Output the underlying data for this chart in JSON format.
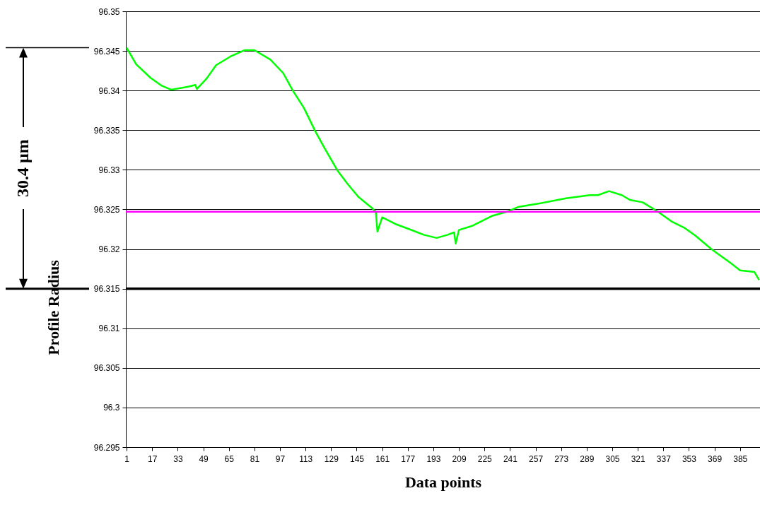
{
  "chart_data": {
    "type": "line",
    "xlabel": "Data points",
    "ylabel": "Profile Radius",
    "x": [
      1,
      7,
      16,
      23,
      29,
      40,
      44,
      45,
      51,
      57,
      66,
      75,
      81,
      91,
      99,
      105,
      112,
      119,
      125,
      133,
      139,
      146,
      155,
      157,
      158,
      161,
      170,
      178,
      187,
      195,
      202,
      206,
      207,
      209,
      217,
      230,
      239,
      246,
      258,
      276,
      291,
      296,
      303,
      311,
      316,
      324,
      333,
      342,
      350,
      357,
      367,
      380,
      385,
      394,
      397
    ],
    "values": [
      96.3454,
      96.3433,
      96.3416,
      96.3406,
      96.3401,
      96.3405,
      96.3407,
      96.3402,
      96.3415,
      96.3432,
      96.3443,
      96.3451,
      96.3451,
      96.3439,
      96.3422,
      96.34,
      96.3378,
      96.3349,
      96.3327,
      96.3299,
      96.3283,
      96.3266,
      96.3251,
      96.3247,
      96.3222,
      96.324,
      96.3231,
      96.3225,
      96.3218,
      96.3214,
      96.3218,
      96.3221,
      96.3207,
      96.3224,
      96.3229,
      96.3242,
      96.3247,
      96.3253,
      96.3257,
      96.3264,
      96.3268,
      96.3268,
      96.3273,
      96.3268,
      96.3262,
      96.3259,
      96.3248,
      96.3235,
      96.3227,
      96.3217,
      96.32,
      96.3181,
      96.3173,
      96.3171,
      96.3161
    ],
    "color": "#00ff00",
    "xlim": [
      0.5,
      397.5
    ],
    "xticks": [
      1,
      17,
      33,
      49,
      65,
      81,
      97,
      113,
      129,
      145,
      161,
      177,
      193,
      209,
      225,
      241,
      257,
      273,
      289,
      305,
      321,
      337,
      353,
      369,
      385
    ],
    "ylim": [
      96.295,
      96.35
    ],
    "yticks": [
      96.295,
      96.3,
      96.305,
      96.31,
      96.315,
      96.32,
      96.325,
      96.33,
      96.335,
      96.34,
      96.345,
      96.35
    ],
    "grid": "y",
    "marker": "none",
    "line_style": "solid",
    "ref_lines": [
      {
        "axis": "y",
        "value": 96.3247,
        "label": null,
        "color": "#ff00ff"
      },
      {
        "axis": "y",
        "value": 96.315,
        "label": null,
        "color": "#000000"
      }
    ],
    "annotations": [
      "30.4 µm"
    ]
  }
}
